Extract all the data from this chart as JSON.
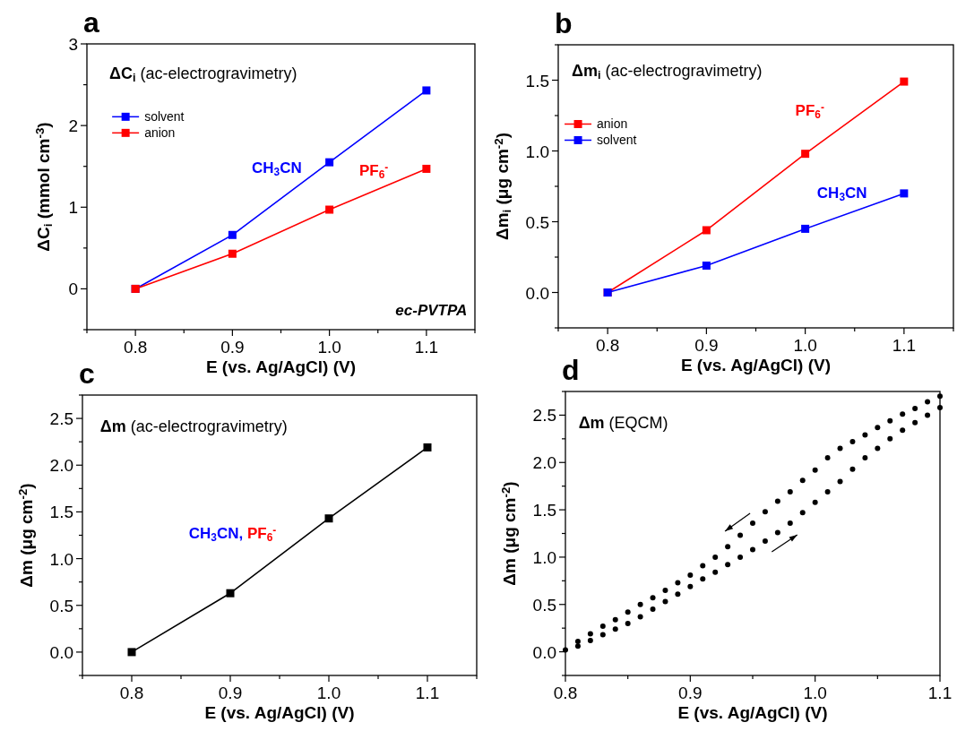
{
  "chart_data": [
    {
      "type": "line",
      "title": "a",
      "xlabel": "E (vs. Ag/AgCl) (V)",
      "ylabel": "ΔC$_{i}$ (mmol cm$^{-3}$)",
      "x": [
        0.8,
        0.9,
        1.0,
        1.1
      ],
      "xlim": [
        0.75,
        1.15
      ],
      "xticks": [
        {
          "value": 0.75,
          "label": null
        },
        0.8,
        {
          "value": 0.85,
          "label": null
        },
        0.9,
        {
          "value": 0.95,
          "label": null
        },
        {
          "value": 1.0,
          "label": "1.0"
        },
        {
          "value": 1.05,
          "label": null
        },
        1.1,
        {
          "value": 1.15,
          "label": null
        }
      ],
      "ylim": [
        -0.5,
        3
      ],
      "yticks": [
        {
          "value": -0.5,
          "label": null
        },
        0,
        {
          "value": 0.5,
          "label": null
        },
        1,
        {
          "value": 1.5,
          "label": null
        },
        2,
        {
          "value": 2.5,
          "label": null
        },
        3
      ],
      "marker": "square",
      "legend": "top left",
      "series": [
        {
          "name": "solvent",
          "color": "#0000ff",
          "values": [
            0,
            0.66,
            1.55,
            2.43
          ]
        },
        {
          "name": "anion",
          "color": "#ff0000",
          "values": [
            0,
            0.43,
            0.97,
            1.47
          ]
        }
      ],
      "annotations": [
        "ΔC$_{i}$ (ac-electrogravimetry)",
        "CH$_{3}$CN",
        "PF$_{6}$$^{-}$",
        "ec-PVTPA"
      ]
    },
    {
      "type": "line",
      "title": "b",
      "xlabel": "E (vs. Ag/AgCl) (V)",
      "ylabel": "Δm$_{i}$ (μg cm$^{-2}$)",
      "x": [
        0.8,
        0.9,
        1.0,
        1.1
      ],
      "xlim": [
        0.75,
        1.15
      ],
      "xticks": [
        {
          "value": 0.75,
          "label": null
        },
        0.8,
        {
          "value": 0.85,
          "label": null
        },
        0.9,
        {
          "value": 0.95,
          "label": null
        },
        {
          "value": 1.0,
          "label": "1.0"
        },
        {
          "value": 1.05,
          "label": null
        },
        1.1,
        {
          "value": 1.15,
          "label": null
        }
      ],
      "ylim": [
        -0.25,
        1.75
      ],
      "yticks": [
        {
          "value": -0.25,
          "label": null
        },
        {
          "value": 0,
          "label": "0.0"
        },
        {
          "value": 0.25,
          "label": null
        },
        0.5,
        {
          "value": 0.75,
          "label": null
        },
        {
          "value": 1.0,
          "label": "1.0"
        },
        {
          "value": 1.25,
          "label": null
        },
        1.5,
        {
          "value": 1.75,
          "label": null
        }
      ],
      "marker": "square",
      "legend": "top left",
      "series": [
        {
          "name": "anion",
          "color": "#ff0000",
          "values": [
            0,
            0.44,
            0.98,
            1.49
          ]
        },
        {
          "name": "solvent",
          "color": "#0000ff",
          "values": [
            0,
            0.19,
            0.45,
            0.7
          ]
        }
      ],
      "annotations": [
        "Δm$_{i}$ (ac-electrogravimetry)",
        "PF$_{6}$$^{-}$",
        "CH$_{3}$CN"
      ]
    },
    {
      "type": "line",
      "title": "c",
      "xlabel": "E (vs. Ag/AgCl) (V)",
      "ylabel": "Δm (μg cm$^{-2}$)",
      "x": [
        0.8,
        0.9,
        1.0,
        1.1
      ],
      "xlim": [
        0.75,
        1.15
      ],
      "xticks": [
        {
          "value": 0.75,
          "label": null
        },
        0.8,
        {
          "value": 0.85,
          "label": null
        },
        0.9,
        {
          "value": 0.95,
          "label": null
        },
        {
          "value": 1.0,
          "label": "1.0"
        },
        {
          "value": 1.05,
          "label": null
        },
        1.1,
        {
          "value": 1.15,
          "label": null
        }
      ],
      "ylim": [
        -0.25,
        2.75
      ],
      "yticks": [
        {
          "value": -0.25,
          "label": null
        },
        {
          "value": 0,
          "label": "0.0"
        },
        {
          "value": 0.25,
          "label": null
        },
        0.5,
        {
          "value": 0.75,
          "label": null
        },
        {
          "value": 1.0,
          "label": "1.0"
        },
        {
          "value": 1.25,
          "label": null
        },
        1.5,
        {
          "value": 1.75,
          "label": null
        },
        {
          "value": 2.0,
          "label": "2.0"
        },
        {
          "value": 2.25,
          "label": null
        },
        2.5,
        {
          "value": 2.75,
          "label": null
        }
      ],
      "marker": "square",
      "series": [
        {
          "color": "#000000",
          "values": [
            0,
            0.63,
            1.43,
            2.19
          ]
        }
      ],
      "annotations": [
        "Δm (ac-electrogravimetry)",
        "CH$_{3}$CN,",
        "PF$_{6}$$^{-}$"
      ]
    },
    {
      "type": "scatter",
      "title": "d",
      "xlabel": "E (vs. Ag/AgCl) (V)",
      "ylabel": "Δm (μg cm$^{-2}$)",
      "xlim": [
        0.8,
        1.1
      ],
      "xticks": [
        0.8,
        {
          "value": 0.85,
          "label": null
        },
        0.9,
        {
          "value": 0.95,
          "label": null
        },
        {
          "value": 1.0,
          "label": "1.0"
        },
        {
          "value": 1.05,
          "label": null
        },
        1.1
      ],
      "ylim": [
        -0.25,
        2.75
      ],
      "yticks": [
        {
          "value": -0.25,
          "label": null
        },
        {
          "value": 0,
          "label": "0.0"
        },
        {
          "value": 0.25,
          "label": null
        },
        0.5,
        {
          "value": 0.75,
          "label": null
        },
        {
          "value": 1.0,
          "label": "1.0"
        },
        {
          "value": 1.25,
          "label": null
        },
        1.5,
        {
          "value": 1.75,
          "label": null
        },
        {
          "value": 2.0,
          "label": "2.0"
        },
        {
          "value": 2.25,
          "label": null
        },
        2.5,
        {
          "value": 2.75,
          "label": null
        }
      ],
      "marker": "circle",
      "series": [
        {
          "color": "#000000",
          "x": [
            0.8,
            0.81,
            0.82,
            0.83,
            0.84,
            0.85,
            0.86,
            0.87,
            0.88,
            0.89,
            0.9,
            0.91,
            0.92,
            0.93,
            0.94,
            0.95,
            0.96,
            0.97,
            0.98,
            0.99,
            1.0,
            1.01,
            1.02,
            1.03,
            1.04,
            1.05,
            1.06,
            1.07,
            1.08,
            1.09,
            1.1
          ],
          "values": [
            0.02,
            0.06,
            0.12,
            0.18,
            0.24,
            0.3,
            0.37,
            0.45,
            0.53,
            0.61,
            0.69,
            0.77,
            0.84,
            0.92,
            1.0,
            1.08,
            1.17,
            1.26,
            1.36,
            1.47,
            1.58,
            1.69,
            1.8,
            1.93,
            2.05,
            2.15,
            2.25,
            2.34,
            2.42,
            2.5,
            2.58
          ]
        },
        {
          "color": "#000000",
          "x": [
            1.1,
            1.09,
            1.08,
            1.07,
            1.06,
            1.05,
            1.04,
            1.03,
            1.02,
            1.01,
            1.0,
            0.99,
            0.98,
            0.97,
            0.96,
            0.95,
            0.94,
            0.93,
            0.92,
            0.91,
            0.9,
            0.89,
            0.88,
            0.87,
            0.86,
            0.85,
            0.84,
            0.83,
            0.82,
            0.81
          ],
          "values": [
            2.7,
            2.64,
            2.57,
            2.51,
            2.44,
            2.37,
            2.29,
            2.22,
            2.15,
            2.05,
            1.92,
            1.81,
            1.69,
            1.59,
            1.48,
            1.36,
            1.23,
            1.11,
            1.0,
            0.91,
            0.81,
            0.73,
            0.65,
            0.57,
            0.5,
            0.42,
            0.34,
            0.27,
            0.19,
            0.11
          ]
        }
      ],
      "annotations": [
        "Δm (EQCM)"
      ]
    }
  ]
}
